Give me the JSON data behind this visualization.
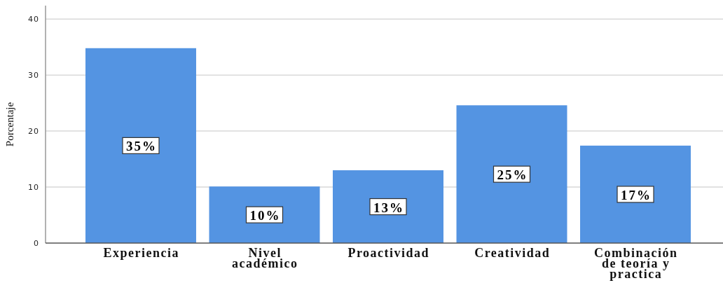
{
  "chart_data": {
    "type": "bar",
    "ylabel": "Porcentaje",
    "categories": [
      "Experiencia",
      "Nivel académico",
      "Proactividad",
      "Creatividad",
      "Combinación de teoría y practica"
    ],
    "values": [
      34.8,
      10.1,
      13.0,
      24.6,
      17.4
    ],
    "value_labels": [
      "35%",
      "10%",
      "13%",
      "25%",
      "17%"
    ],
    "color": "#5494e2",
    "ylim": [
      0,
      42.4
    ],
    "yticks": [
      0,
      10,
      20,
      30,
      40
    ],
    "grid": "y"
  }
}
